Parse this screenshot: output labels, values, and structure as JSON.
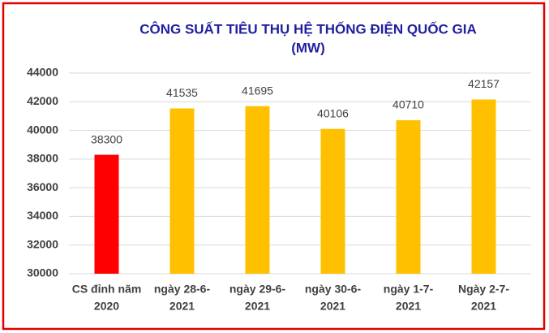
{
  "chart_data": {
    "type": "bar",
    "title": [
      "CÔNG SUẤT TIÊU THỤ HỆ THỐNG ĐIỆN QUỐC GIA",
      "(MW)"
    ],
    "categories": [
      [
        "CS đỉnh năm",
        "2020"
      ],
      [
        "ngày 28-6-",
        "2021"
      ],
      [
        "ngày 29-6-",
        "2021"
      ],
      [
        "ngày 30-6-",
        "2021"
      ],
      [
        "ngày 1-7-",
        "2021"
      ],
      [
        "Ngày 2-7-",
        "2021"
      ]
    ],
    "values": [
      38300,
      41535,
      41695,
      40106,
      40710,
      42157
    ],
    "colors": [
      "#ff0000",
      "#ffc000",
      "#ffc000",
      "#ffc000",
      "#ffc000",
      "#ffc000"
    ],
    "ylim": [
      30000,
      44000
    ],
    "yticks": [
      30000,
      32000,
      34000,
      36000,
      38000,
      40000,
      42000,
      44000
    ],
    "grid": true
  }
}
